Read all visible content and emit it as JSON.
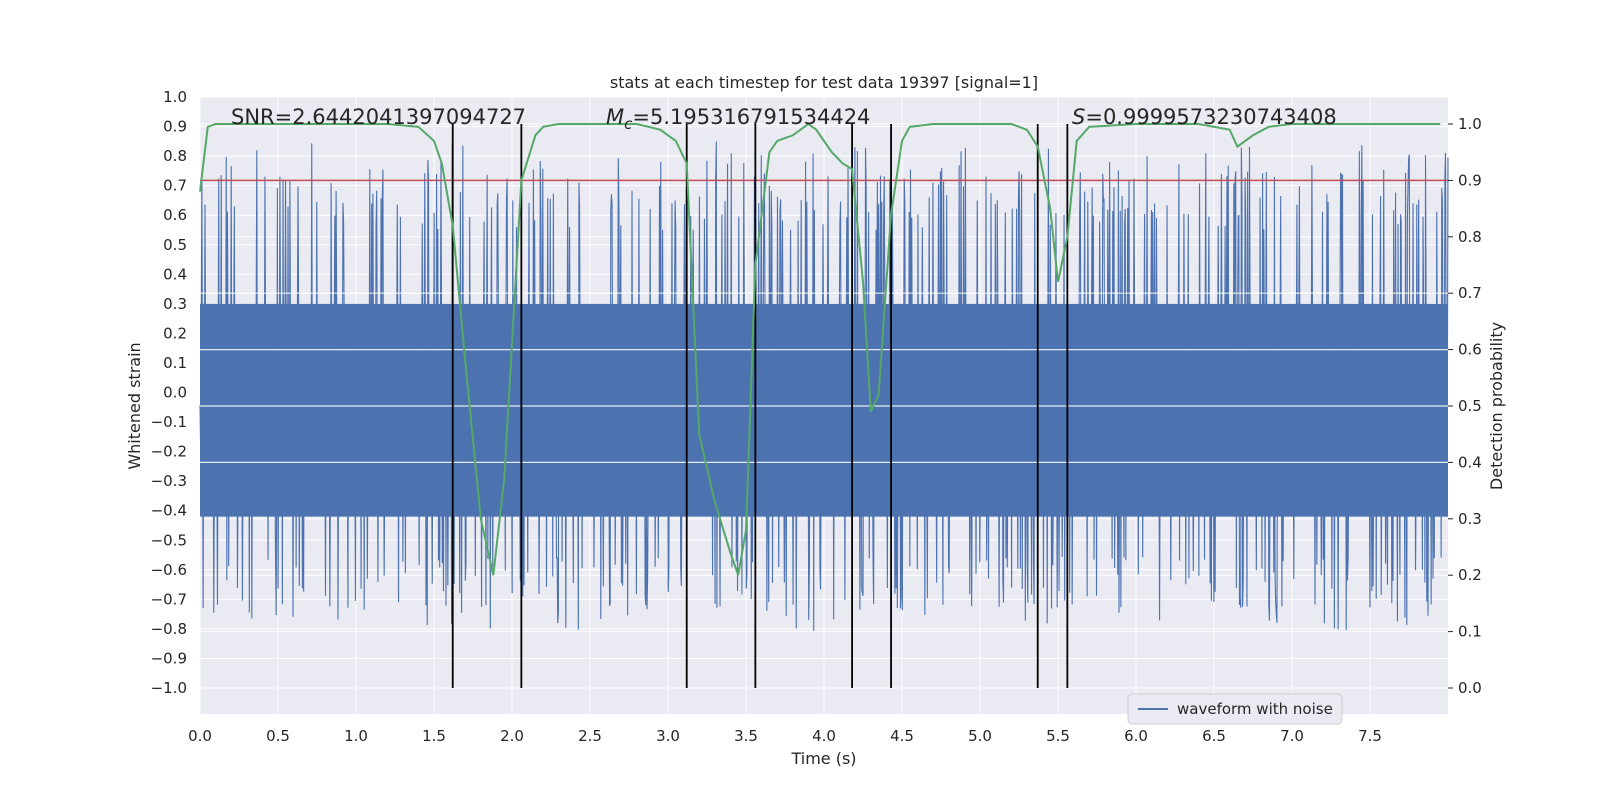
{
  "chart_data": {
    "type": "line",
    "title": "stats at each timestep for test data 19397 [signal=1]",
    "xlabel": "Time (s)",
    "ylabel": "Whitened strain",
    "y2label": "Detection probability",
    "xlim": [
      0.0,
      8.0
    ],
    "ylim": [
      -1.0,
      1.0
    ],
    "y2lim": [
      0.0,
      1.0
    ],
    "x_ticks": [
      "0.0",
      "0.5",
      "1.0",
      "1.5",
      "2.0",
      "2.5",
      "3.0",
      "3.5",
      "4.0",
      "4.5",
      "5.0",
      "5.5",
      "6.0",
      "6.5",
      "7.0",
      "7.5"
    ],
    "y_ticks": [
      "1.0",
      "0.9",
      "0.8",
      "0.7",
      "0.6",
      "0.5",
      "0.4",
      "0.3",
      "0.2",
      "0.1",
      "0.0",
      "−0.1",
      "−0.2",
      "−0.3",
      "−0.4",
      "−0.5",
      "−0.6",
      "−0.7",
      "−0.8",
      "−0.9",
      "−1.0"
    ],
    "y2_ticks": [
      "1.0",
      "0.9",
      "0.8",
      "0.7",
      "0.6",
      "0.5",
      "0.4",
      "0.3",
      "0.2",
      "0.1",
      "0.0"
    ],
    "grid": true,
    "legend_placement": "lower-right",
    "annotations": {
      "snr": "SNR=2.6442041397094727",
      "mc_symbol": "M",
      "mc_subscript": "c",
      "mc_value": "=5.195316791534424",
      "s_symbol": "S",
      "s_value": "=0.9999573230743408"
    },
    "threshold_line": {
      "y2": 0.9,
      "color": "#c44e52"
    },
    "vertical_markers": [
      1.62,
      2.06,
      3.12,
      3.56,
      4.18,
      4.43,
      5.37,
      5.56
    ],
    "series": [
      {
        "name": "waveform with noise",
        "color": "#4c72b0",
        "kind": "noise",
        "core_amplitude": 0.3,
        "spike_peak_range": [
          0.55,
          0.9
        ],
        "dip_peak_range": [
          -0.85,
          -0.55
        ],
        "sample_count": 2000
      },
      {
        "name": "",
        "axis": "y2",
        "color": "#55a868",
        "x": [
          0.0,
          0.05,
          0.1,
          0.3,
          0.5,
          0.8,
          1.0,
          1.2,
          1.4,
          1.5,
          1.55,
          1.62,
          1.7,
          1.8,
          1.88,
          1.95,
          2.06,
          2.15,
          2.2,
          2.3,
          2.5,
          2.8,
          2.95,
          3.05,
          3.12,
          3.2,
          3.3,
          3.4,
          3.45,
          3.5,
          3.56,
          3.65,
          3.7,
          3.8,
          3.9,
          3.95,
          4.05,
          4.12,
          4.18,
          4.25,
          4.3,
          4.35,
          4.43,
          4.5,
          4.55,
          4.7,
          5.0,
          5.2,
          5.3,
          5.37,
          5.45,
          5.5,
          5.56,
          5.62,
          5.7,
          6.0,
          6.4,
          6.6,
          6.65,
          6.75,
          6.85,
          7.0,
          7.5,
          7.95
        ],
        "y": [
          0.88,
          0.995,
          1.0,
          1.0,
          1.0,
          1.0,
          1.0,
          1.0,
          0.995,
          0.97,
          0.93,
          0.82,
          0.58,
          0.3,
          0.2,
          0.37,
          0.9,
          0.98,
          0.995,
          1.0,
          1.0,
          1.0,
          0.99,
          0.97,
          0.93,
          0.45,
          0.33,
          0.24,
          0.2,
          0.28,
          0.75,
          0.95,
          0.97,
          0.98,
          1.0,
          0.99,
          0.95,
          0.93,
          0.92,
          0.72,
          0.49,
          0.52,
          0.84,
          0.97,
          0.995,
          1.0,
          1.0,
          1.0,
          0.99,
          0.96,
          0.85,
          0.72,
          0.8,
          0.97,
          0.995,
          1.0,
          1.0,
          0.99,
          0.96,
          0.98,
          0.995,
          1.0,
          1.0,
          1.0
        ]
      }
    ]
  }
}
